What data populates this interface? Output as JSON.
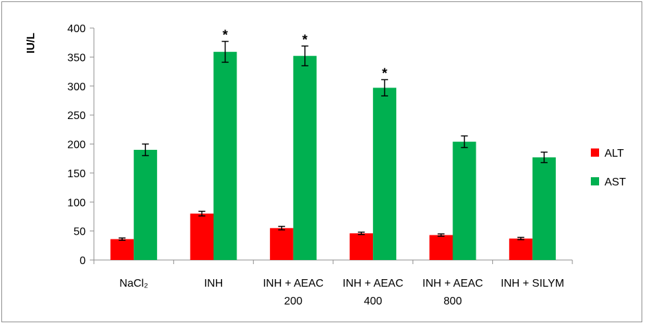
{
  "chart_data": {
    "type": "bar",
    "title": "",
    "xlabel": "",
    "ylabel": "IU/L",
    "ylim": [
      0,
      400
    ],
    "yticks": [
      0,
      50,
      100,
      150,
      200,
      250,
      300,
      350,
      400
    ],
    "grid": false,
    "legend_position": "right",
    "categories": [
      [
        "NaCl₂"
      ],
      [
        "INH"
      ],
      [
        "INH + AEAC",
        "200"
      ],
      [
        "INH + AEAC",
        "400"
      ],
      [
        "INH + AEAC",
        "800"
      ],
      [
        "INH + SILYM"
      ]
    ],
    "series": [
      {
        "name": "ALT",
        "color": "#ff0000",
        "values": [
          36,
          80,
          55,
          46,
          43,
          37
        ],
        "errors": [
          2,
          4,
          3,
          2,
          2,
          2
        ],
        "annotations": [
          "",
          "",
          "",
          "",
          "",
          ""
        ]
      },
      {
        "name": "AST",
        "color": "#00b050",
        "values": [
          190,
          359,
          352,
          297,
          204,
          177
        ],
        "errors": [
          10,
          18,
          17,
          14,
          10,
          9
        ],
        "annotations": [
          "",
          "*",
          "*",
          "*",
          "",
          ""
        ]
      }
    ]
  }
}
